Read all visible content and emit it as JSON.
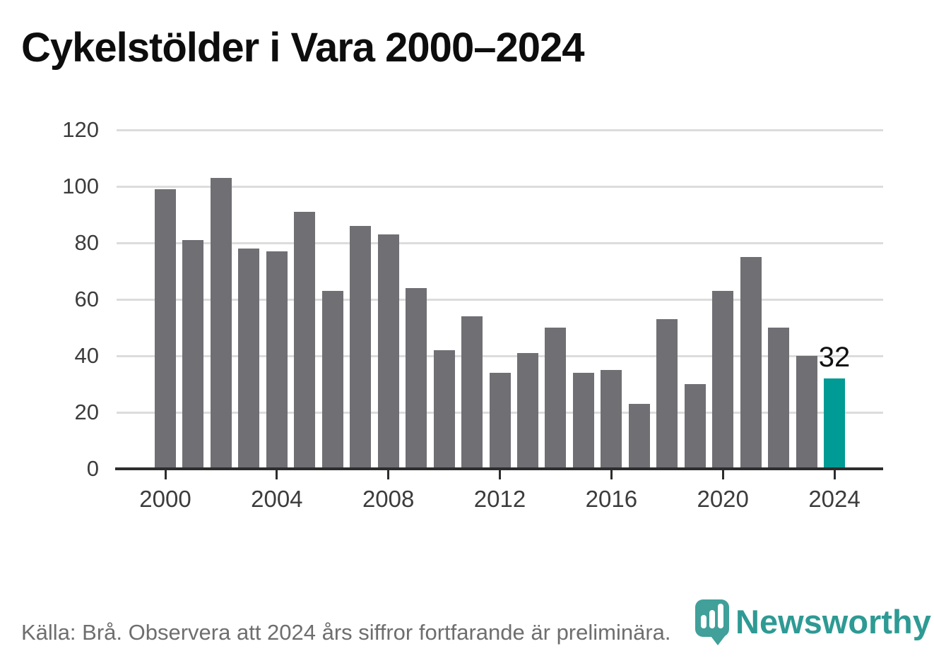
{
  "title": "Cykelstölder i Vara 2000–2024",
  "footer": {
    "source_note": "Källa: Brå. Observera att 2024 års siffror fortfarande är preliminära."
  },
  "branding": {
    "name": "Newsworthy",
    "icon": "newsworthy-pin-barchart-icon"
  },
  "colors": {
    "bar": "#6f6f74",
    "highlight": "#009b94",
    "gridline": "#dcdcdc",
    "axis": "#2d2d2d",
    "tick_label": "#3c3c3c",
    "title": "#0d0d0d",
    "footer_text": "#6e6e6e",
    "brand_teal": "#2e9a94"
  },
  "chart_data": {
    "type": "bar",
    "title": "Cykelstölder i Vara 2000–2024",
    "xlabel": "",
    "ylabel": "",
    "categories": [
      2000,
      2001,
      2002,
      2003,
      2004,
      2005,
      2006,
      2007,
      2008,
      2009,
      2010,
      2011,
      2012,
      2013,
      2014,
      2015,
      2016,
      2017,
      2018,
      2019,
      2020,
      2021,
      2022,
      2023,
      2024
    ],
    "values": [
      99,
      81,
      103,
      78,
      77,
      91,
      63,
      86,
      83,
      64,
      42,
      54,
      34,
      41,
      50,
      34,
      35,
      23,
      53,
      30,
      63,
      75,
      50,
      40,
      32
    ],
    "ylim": [
      0,
      120
    ],
    "y_ticks": [
      0,
      20,
      40,
      60,
      80,
      100,
      120
    ],
    "x_ticks": [
      2000,
      2004,
      2008,
      2012,
      2016,
      2020,
      2024
    ],
    "grid": "horizontal",
    "legend": "none",
    "highlight": {
      "category": 2024,
      "value": 32,
      "data_label": "32",
      "color": "#009b94"
    }
  }
}
